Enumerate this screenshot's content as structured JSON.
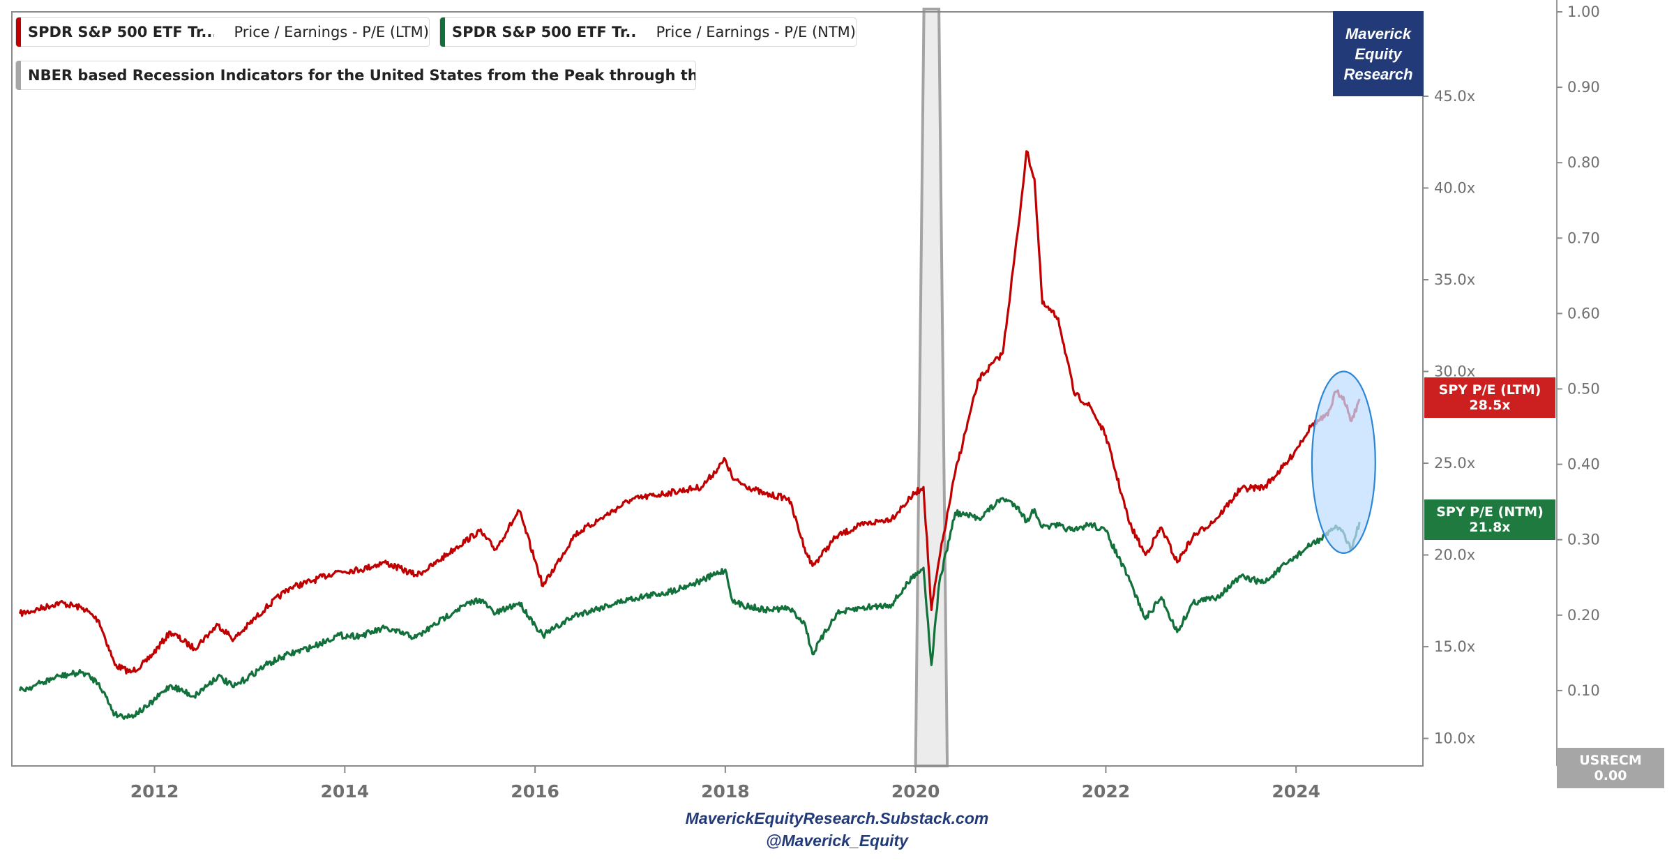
{
  "chart_data": {
    "type": "line",
    "legend": [
      {
        "name": "SPDR S&P 500 ETF Tr...",
        "metric": "Price / Earnings - P/E (LTM)",
        "color": "#c00000"
      },
      {
        "name": "SPDR S&P 500 ETF Tr...",
        "metric": "Price / Earnings - P/E (NTM)",
        "color": "#12703a"
      },
      {
        "name": "NBER based Recession Indicators for the United States from the Peak through the Trou...",
        "color": "#a6a6a6"
      }
    ],
    "x_ticks": [
      "2012",
      "2014",
      "2016",
      "2018",
      "2020",
      "2022",
      "2024"
    ],
    "xlim": [
      "2010-07",
      "2025-05"
    ],
    "y_left_ticks": [
      "10.0x",
      "15.0x",
      "20.0x",
      "25.0x",
      "30.0x",
      "35.0x",
      "40.0x",
      "45.0x"
    ],
    "ylim": [
      8.5,
      49.6
    ],
    "y_right_ticks": [
      "0.10",
      "0.20",
      "0.30",
      "0.40",
      "0.50",
      "0.60",
      "0.70",
      "0.80",
      "0.90",
      "1.00"
    ],
    "y_right_lim": [
      0,
      1
    ],
    "series": [
      {
        "key": "ltm",
        "color": "#c00000",
        "points": [
          [
            "2010-08",
            16.8
          ],
          [
            "2010-10",
            17.0
          ],
          [
            "2011-01",
            17.4
          ],
          [
            "2011-04",
            17.1
          ],
          [
            "2011-06",
            16.4
          ],
          [
            "2011-08",
            14.0
          ],
          [
            "2011-10",
            13.6
          ],
          [
            "2011-12",
            14.2
          ],
          [
            "2012-03",
            15.8
          ],
          [
            "2012-06",
            14.9
          ],
          [
            "2012-09",
            16.2
          ],
          [
            "2012-11",
            15.4
          ],
          [
            "2013-03",
            17.1
          ],
          [
            "2013-06",
            18.2
          ],
          [
            "2013-09",
            18.6
          ],
          [
            "2013-12",
            19.1
          ],
          [
            "2014-03",
            19.2
          ],
          [
            "2014-06",
            19.6
          ],
          [
            "2014-10",
            18.9
          ],
          [
            "2014-12",
            19.4
          ],
          [
            "2015-03",
            20.4
          ],
          [
            "2015-06",
            21.3
          ],
          [
            "2015-08",
            20.3
          ],
          [
            "2015-11",
            22.4
          ],
          [
            "2016-01",
            19.7
          ],
          [
            "2016-02",
            18.3
          ],
          [
            "2016-06",
            21.1
          ],
          [
            "2016-09",
            21.9
          ],
          [
            "2017-01",
            23.0
          ],
          [
            "2017-06",
            23.4
          ],
          [
            "2017-10",
            23.7
          ],
          [
            "2018-01",
            25.2
          ],
          [
            "2018-02",
            24.1
          ],
          [
            "2018-06",
            23.3
          ],
          [
            "2018-09",
            23.1
          ],
          [
            "2018-11",
            20.4
          ],
          [
            "2018-12",
            19.4
          ],
          [
            "2019-03",
            21.0
          ],
          [
            "2019-06",
            21.6
          ],
          [
            "2019-10",
            22.0
          ],
          [
            "2020-01",
            23.4
          ],
          [
            "2020-02",
            23.7
          ],
          [
            "2020-03",
            17.0
          ],
          [
            "2020-04",
            19.8
          ],
          [
            "2020-06",
            24.5
          ],
          [
            "2020-09",
            29.6
          ],
          [
            "2020-12",
            31.0
          ],
          [
            "2021-02",
            38.0
          ],
          [
            "2021-03",
            42.0
          ],
          [
            "2021-04",
            40.5
          ],
          [
            "2021-05",
            33.7
          ],
          [
            "2021-07",
            32.9
          ],
          [
            "2021-09",
            28.8
          ],
          [
            "2021-11",
            28.1
          ],
          [
            "2022-01",
            26.5
          ],
          [
            "2022-04",
            21.7
          ],
          [
            "2022-06",
            20.0
          ],
          [
            "2022-08",
            21.5
          ],
          [
            "2022-10",
            19.6
          ],
          [
            "2022-12",
            21.0
          ],
          [
            "2023-03",
            22.0
          ],
          [
            "2023-06",
            23.6
          ],
          [
            "2023-09",
            23.7
          ],
          [
            "2023-12",
            25.1
          ],
          [
            "2024-03",
            27.1
          ],
          [
            "2024-05",
            27.6
          ],
          [
            "2024-06",
            28.9
          ],
          [
            "2024-07",
            28.6
          ],
          [
            "2024-08",
            27.3
          ],
          [
            "2024-09",
            28.5
          ]
        ]
      },
      {
        "key": "ntm",
        "color": "#12703a",
        "points": [
          [
            "2010-08",
            12.6
          ],
          [
            "2010-10",
            12.9
          ],
          [
            "2011-01",
            13.4
          ],
          [
            "2011-04",
            13.6
          ],
          [
            "2011-06",
            13.0
          ],
          [
            "2011-08",
            11.3
          ],
          [
            "2011-10",
            11.2
          ],
          [
            "2011-12",
            11.7
          ],
          [
            "2012-03",
            12.9
          ],
          [
            "2012-06",
            12.3
          ],
          [
            "2012-09",
            13.4
          ],
          [
            "2012-11",
            12.8
          ],
          [
            "2013-03",
            14.0
          ],
          [
            "2013-06",
            14.6
          ],
          [
            "2013-09",
            15.0
          ],
          [
            "2013-12",
            15.6
          ],
          [
            "2014-03",
            15.6
          ],
          [
            "2014-06",
            16.0
          ],
          [
            "2014-10",
            15.5
          ],
          [
            "2014-12",
            16.1
          ],
          [
            "2015-03",
            17.0
          ],
          [
            "2015-06",
            17.6
          ],
          [
            "2015-08",
            16.8
          ],
          [
            "2015-11",
            17.4
          ],
          [
            "2016-01",
            16.2
          ],
          [
            "2016-02",
            15.6
          ],
          [
            "2016-06",
            16.7
          ],
          [
            "2016-09",
            17.1
          ],
          [
            "2017-01",
            17.6
          ],
          [
            "2017-06",
            18.0
          ],
          [
            "2017-10",
            18.6
          ],
          [
            "2018-01",
            19.2
          ],
          [
            "2018-02",
            17.4
          ],
          [
            "2018-06",
            17.0
          ],
          [
            "2018-09",
            17.1
          ],
          [
            "2018-11",
            16.3
          ],
          [
            "2018-12",
            14.6
          ],
          [
            "2019-03",
            16.8
          ],
          [
            "2019-06",
            17.1
          ],
          [
            "2019-10",
            17.3
          ],
          [
            "2020-01",
            19.0
          ],
          [
            "2020-02",
            19.3
          ],
          [
            "2020-03",
            14.0
          ],
          [
            "2020-04",
            18.5
          ],
          [
            "2020-06",
            22.3
          ],
          [
            "2020-09",
            22.0
          ],
          [
            "2020-12",
            23.1
          ],
          [
            "2021-02",
            22.6
          ],
          [
            "2021-03",
            21.8
          ],
          [
            "2021-04",
            22.5
          ],
          [
            "2021-05",
            21.5
          ],
          [
            "2021-07",
            21.6
          ],
          [
            "2021-09",
            21.3
          ],
          [
            "2021-11",
            21.7
          ],
          [
            "2022-01",
            21.3
          ],
          [
            "2022-04",
            18.6
          ],
          [
            "2022-06",
            16.5
          ],
          [
            "2022-08",
            17.7
          ],
          [
            "2022-10",
            15.8
          ],
          [
            "2022-12",
            17.4
          ],
          [
            "2023-03",
            17.7
          ],
          [
            "2023-06",
            18.8
          ],
          [
            "2023-09",
            18.5
          ],
          [
            "2023-12",
            19.6
          ],
          [
            "2024-03",
            20.6
          ],
          [
            "2024-05",
            21.1
          ],
          [
            "2024-06",
            21.6
          ],
          [
            "2024-07",
            21.2
          ],
          [
            "2024-08",
            20.3
          ],
          [
            "2024-09",
            21.8
          ]
        ]
      }
    ],
    "recession": {
      "start": "2020-01",
      "end": "2020-05",
      "value": 1
    },
    "callout_region": {
      "x": [
        "2024-03",
        "2024-11"
      ],
      "y": [
        20.1,
        30.0
      ]
    },
    "value_tags": [
      {
        "key": "ltm",
        "label": "SPY P/E (LTM)",
        "value": "28.5x",
        "color": "#cc1f1f"
      },
      {
        "key": "ntm",
        "label": "SPY P/E (NTM)",
        "value": "21.8x",
        "color": "#1e7a3e"
      }
    ],
    "usrecm_tag": {
      "label": "USRECM",
      "value": "0.00"
    }
  },
  "branding": {
    "line1": "Maverick",
    "line2": "Equity",
    "line3": "Research"
  },
  "footer": {
    "site": "MaverickEquityResearch.Substack.com",
    "handle": "@Maverick_Equity"
  }
}
